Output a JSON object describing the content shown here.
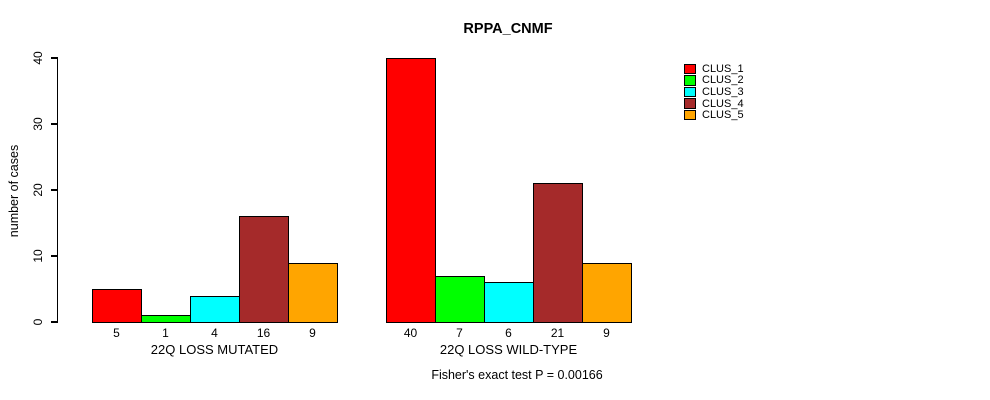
{
  "title": "RPPA_CNMF",
  "chart_data": {
    "type": "bar",
    "title": "RPPA_CNMF",
    "ylabel": "number of cases",
    "ylim": [
      0,
      40
    ],
    "yticks": [
      0,
      10,
      20,
      30,
      40
    ],
    "grid": false,
    "legend_position": "right",
    "series": [
      {
        "name": "CLUS_1",
        "color": "#FF0000"
      },
      {
        "name": "CLUS_2",
        "color": "#00FF00"
      },
      {
        "name": "CLUS_3",
        "color": "#00FFFF"
      },
      {
        "name": "CLUS_4",
        "color": "#A52A2A"
      },
      {
        "name": "CLUS_5",
        "color": "#FFA500"
      }
    ],
    "groups": [
      {
        "label": "22Q LOSS MUTATED",
        "values": [
          5,
          1,
          4,
          16,
          9
        ]
      },
      {
        "label": "22Q LOSS WILD-TYPE",
        "values": [
          40,
          7,
          6,
          21,
          9
        ]
      }
    ],
    "annotation": "Fisher's exact test P = 0.00166"
  }
}
